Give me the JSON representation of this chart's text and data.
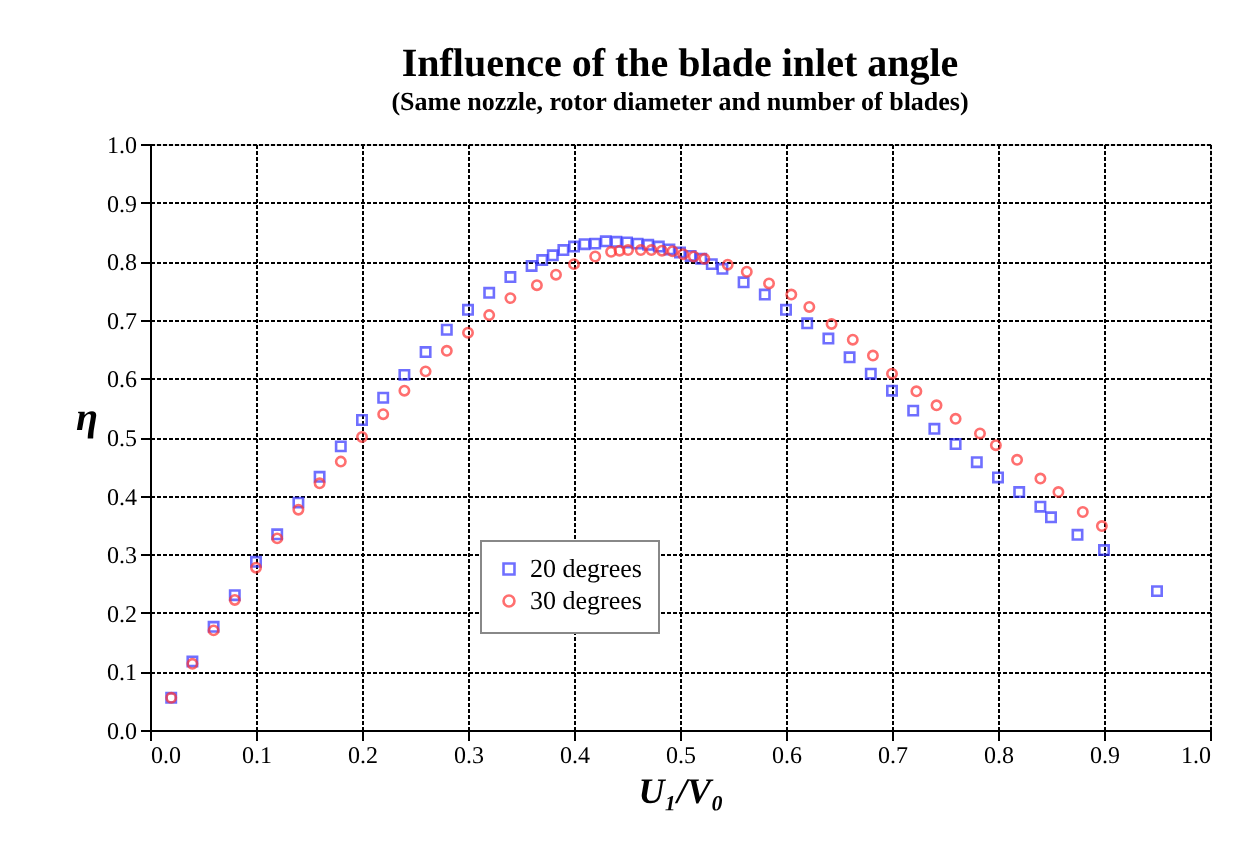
{
  "chart_data": {
    "type": "scatter",
    "title": "Influence of the blade inlet angle",
    "subtitle": "(Same nozzle, rotor diameter and number of blades)",
    "xlabel": "U₁/V₀",
    "ylabel": "η",
    "xlim": [
      0,
      1
    ],
    "xticks": [
      {
        "value": 0,
        "label": "0.0"
      },
      0.1,
      0.2,
      0.3,
      0.4,
      0.5,
      0.6,
      0.7,
      0.8,
      0.9,
      {
        "value": 1,
        "label": "1.0"
      }
    ],
    "ylim": [
      0,
      1
    ],
    "yticks": [
      {
        "value": 0,
        "label": "0.0"
      },
      0.1,
      0.2,
      0.3,
      0.4,
      0.5,
      0.6,
      0.7,
      0.8,
      0.9,
      {
        "value": 1,
        "label": "1.0"
      }
    ],
    "grid": true,
    "legend": "bottom",
    "series": [
      {
        "name": "20 degrees",
        "color": "#3333ff",
        "marker": "square",
        "x": [
          0.02,
          0.04,
          0.06,
          0.08,
          0.1,
          0.12,
          0.14,
          0.16,
          0.18,
          0.2,
          0.22,
          0.24,
          0.26,
          0.28,
          0.3,
          0.32,
          0.34,
          0.36,
          0.37,
          0.38,
          0.39,
          0.4,
          0.41,
          0.42,
          0.43,
          0.44,
          0.45,
          0.46,
          0.47,
          0.48,
          0.49,
          0.5,
          0.51,
          0.52,
          0.53,
          0.54,
          0.56,
          0.58,
          0.6,
          0.62,
          0.64,
          0.66,
          0.68,
          0.7,
          0.72,
          0.74,
          0.76,
          0.78,
          0.8,
          0.82,
          0.84,
          0.85,
          0.875,
          0.9,
          0.95
        ],
        "values": [
          0.055,
          0.117,
          0.176,
          0.23,
          0.287,
          0.334,
          0.388,
          0.432,
          0.484,
          0.529,
          0.567,
          0.606,
          0.645,
          0.683,
          0.717,
          0.746,
          0.773,
          0.792,
          0.802,
          0.81,
          0.819,
          0.825,
          0.829,
          0.83,
          0.834,
          0.833,
          0.832,
          0.83,
          0.828,
          0.825,
          0.82,
          0.815,
          0.809,
          0.804,
          0.795,
          0.787,
          0.764,
          0.743,
          0.717,
          0.694,
          0.668,
          0.636,
          0.608,
          0.579,
          0.545,
          0.514,
          0.488,
          0.457,
          0.431,
          0.406,
          0.381,
          0.363,
          0.333,
          0.307,
          0.237
        ]
      },
      {
        "name": "30 degrees",
        "color": "#ff3333",
        "marker": "circle",
        "x": [
          0.02,
          0.04,
          0.06,
          0.08,
          0.1,
          0.12,
          0.14,
          0.16,
          0.18,
          0.2,
          0.22,
          0.24,
          0.26,
          0.28,
          0.3,
          0.32,
          0.34,
          0.365,
          0.383,
          0.4,
          0.42,
          0.435,
          0.443,
          0.451,
          0.463,
          0.473,
          0.483,
          0.493,
          0.503,
          0.513,
          0.523,
          0.545,
          0.563,
          0.584,
          0.605,
          0.622,
          0.643,
          0.663,
          0.682,
          0.7,
          0.723,
          0.742,
          0.76,
          0.783,
          0.798,
          0.818,
          0.84,
          0.857,
          0.88,
          0.898
        ],
        "values": [
          0.055,
          0.113,
          0.17,
          0.222,
          0.277,
          0.327,
          0.376,
          0.421,
          0.458,
          0.5,
          0.539,
          0.579,
          0.612,
          0.647,
          0.678,
          0.708,
          0.737,
          0.759,
          0.777,
          0.795,
          0.808,
          0.816,
          0.818,
          0.819,
          0.819,
          0.819,
          0.818,
          0.817,
          0.812,
          0.808,
          0.804,
          0.794,
          0.782,
          0.762,
          0.743,
          0.722,
          0.693,
          0.666,
          0.639,
          0.608,
          0.578,
          0.554,
          0.531,
          0.506,
          0.486,
          0.461,
          0.429,
          0.406,
          0.372,
          0.348
        ]
      }
    ]
  }
}
